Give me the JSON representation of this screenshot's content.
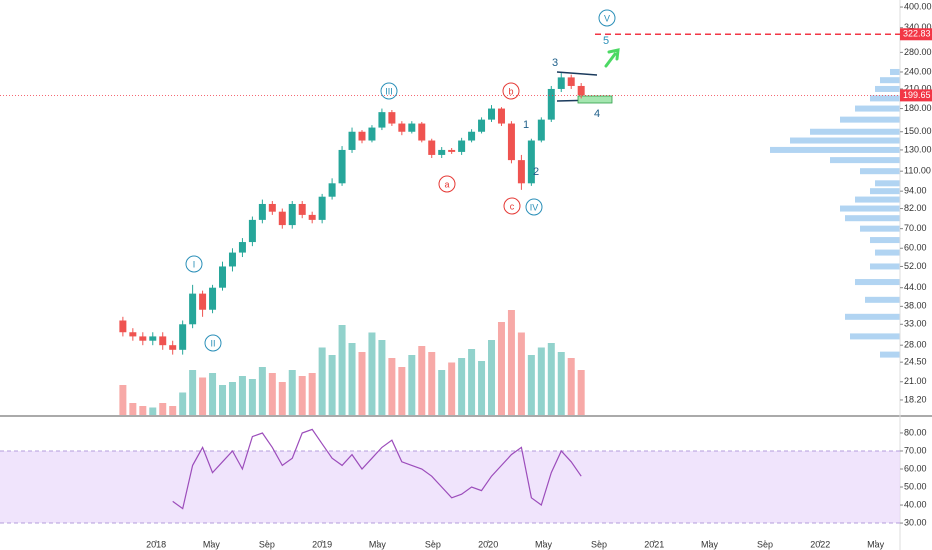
{
  "chart_data": [
    {
      "type": "candlestick",
      "x": [
        2017.8,
        2017.86,
        2017.92,
        2017.98,
        2018.04,
        2018.1,
        2018.16,
        2018.22,
        2018.28,
        2018.34,
        2018.4,
        2018.46,
        2018.52,
        2018.58,
        2018.64,
        2018.7,
        2018.76,
        2018.82,
        2018.88,
        2018.94,
        2019,
        2019.06,
        2019.12,
        2019.18,
        2019.24,
        2019.3,
        2019.36,
        2019.42,
        2019.48,
        2019.54,
        2019.6,
        2019.66,
        2019.72,
        2019.78,
        2019.84,
        2019.9,
        2019.96,
        2020.02,
        2020.08,
        2020.14,
        2020.2,
        2020.26,
        2020.32,
        2020.38,
        2020.44,
        2020.5,
        2020.56
      ],
      "open": [
        34,
        31,
        30,
        29,
        30,
        28,
        27,
        33,
        42,
        37,
        44,
        52,
        58,
        63,
        75,
        85,
        80,
        72,
        85,
        78,
        75,
        90,
        100,
        130,
        150,
        140,
        155,
        175,
        160,
        150,
        160,
        140,
        125,
        130,
        128,
        140,
        150,
        165,
        180,
        160,
        120,
        100,
        140,
        165,
        210,
        230,
        215
      ],
      "high": [
        35,
        32,
        31,
        31,
        31,
        29,
        34,
        45,
        43,
        45,
        54,
        60,
        65,
        77,
        88,
        87,
        82,
        87,
        87,
        80,
        92,
        104,
        134,
        155,
        152,
        158,
        180,
        178,
        163,
        163,
        162,
        142,
        133,
        132,
        143,
        153,
        168,
        185,
        182,
        163,
        125,
        142,
        168,
        215,
        238,
        235,
        220
      ],
      "low": [
        30,
        29,
        28,
        28,
        27,
        26,
        26,
        32,
        35,
        36,
        43,
        50,
        56,
        61,
        73,
        78,
        70,
        70,
        76,
        73,
        73,
        88,
        98,
        127,
        137,
        138,
        152,
        157,
        146,
        148,
        138,
        122,
        122,
        126,
        125,
        138,
        148,
        162,
        157,
        117,
        95,
        98,
        138,
        162,
        205,
        210,
        195
      ],
      "close": [
        31,
        30,
        29,
        30,
        28,
        27,
        33,
        42,
        37,
        44,
        52,
        58,
        63,
        75,
        85,
        80,
        72,
        85,
        78,
        75,
        90,
        100,
        130,
        150,
        140,
        155,
        175,
        160,
        150,
        160,
        140,
        125,
        130,
        128,
        140,
        150,
        165,
        180,
        160,
        120,
        100,
        140,
        165,
        210,
        230,
        215,
        200
      ],
      "volume": [
        20,
        8,
        6,
        5,
        8,
        6,
        15,
        30,
        25,
        28,
        20,
        22,
        26,
        24,
        32,
        28,
        22,
        30,
        26,
        28,
        45,
        40,
        60,
        48,
        42,
        55,
        50,
        38,
        32,
        40,
        46,
        42,
        30,
        35,
        38,
        44,
        36,
        50,
        62,
        70,
        55,
        40,
        45,
        48,
        42,
        38,
        30
      ],
      "up_color": "#26a69a",
      "down_color": "#ef5350",
      "log_scale": true,
      "xlim": [
        2017.06,
        2022.48
      ],
      "ylim": [
        16.17,
        422.7
      ],
      "yticks": [
        {
          "value": 400,
          "label": "400.00"
        },
        {
          "value": 340,
          "label": "340.00"
        },
        {
          "value": 280,
          "label": "280.00"
        },
        {
          "value": 240,
          "label": "240.00"
        },
        {
          "value": 210,
          "label": "210.00"
        },
        {
          "value": 180,
          "label": "180.00"
        },
        {
          "value": 150,
          "label": "150.00"
        },
        {
          "value": 130,
          "label": "130.00"
        },
        {
          "value": 110,
          "label": "110.00"
        },
        {
          "value": 94,
          "label": "94.00"
        },
        {
          "value": 82,
          "label": "82.00"
        },
        {
          "value": 70,
          "label": "70.00"
        },
        {
          "value": 60,
          "label": "60.00"
        },
        {
          "value": 52,
          "label": "52.00"
        },
        {
          "value": 44,
          "label": "44.00"
        },
        {
          "value": 38,
          "label": "38.00"
        },
        {
          "value": 33,
          "label": "33.00"
        },
        {
          "value": 28,
          "label": "28.00"
        },
        {
          "value": 24.5,
          "label": "24.50"
        },
        {
          "value": 21,
          "label": "21.00"
        },
        {
          "value": 18.2,
          "label": "18.20"
        }
      ],
      "levels": [
        {
          "value": 322.83,
          "label": "322.83"
        },
        {
          "value": 199.65,
          "label": "199.65"
        }
      ],
      "level_color": "#f23645",
      "volume_profile": {
        "prices": [
          240,
          225,
          210,
          195,
          180,
          165,
          150,
          140,
          130,
          120,
          110,
          100,
          94,
          88,
          82,
          76,
          70,
          64,
          58,
          52,
          46,
          40,
          35,
          30,
          26
        ],
        "values": [
          10,
          20,
          25,
          30,
          45,
          60,
          90,
          110,
          130,
          70,
          40,
          25,
          30,
          45,
          60,
          55,
          40,
          30,
          25,
          30,
          45,
          35,
          55,
          50,
          20
        ],
        "color": "#9ec9ef"
      },
      "annotations": [
        "V",
        "5",
        "3",
        "III",
        "b",
        "1",
        "4",
        "2",
        "a",
        "c",
        "IV",
        "I",
        "II"
      ]
    },
    {
      "type": "line",
      "x": [
        2017.8,
        2017.86,
        2017.92,
        2017.98,
        2018.04,
        2018.1,
        2018.16,
        2018.22,
        2018.28,
        2018.34,
        2018.4,
        2018.46,
        2018.52,
        2018.58,
        2018.64,
        2018.7,
        2018.76,
        2018.82,
        2018.88,
        2018.94,
        2019,
        2019.06,
        2019.12,
        2019.18,
        2019.24,
        2019.3,
        2019.36,
        2019.42,
        2019.48,
        2019.54,
        2019.6,
        2019.66,
        2019.72,
        2019.78,
        2019.84,
        2019.9,
        2019.96,
        2020.02,
        2020.08,
        2020.14,
        2020.2,
        2020.26,
        2020.32,
        2020.38,
        2020.44,
        2020.5,
        2020.56
      ],
      "values": [
        null,
        null,
        null,
        null,
        null,
        42,
        38,
        62,
        72,
        58,
        64,
        70,
        60,
        78,
        80,
        72,
        62,
        66,
        80,
        82,
        74,
        66,
        62,
        68,
        60,
        66,
        72,
        76,
        64,
        62,
        60,
        56,
        50,
        44,
        46,
        50,
        48,
        56,
        62,
        68,
        72,
        44,
        40,
        58,
        70,
        64,
        56
      ],
      "color": "#9c4dbb",
      "band": [
        30,
        70
      ],
      "band_color": "#ead9fb",
      "xlim": [
        2017.06,
        2022.48
      ],
      "ylim": [
        20.6,
        88.3
      ],
      "yticks": [
        {
          "value": 80,
          "label": "80.00"
        },
        {
          "value": 70,
          "label": "70.00"
        },
        {
          "value": 60,
          "label": "60.00"
        },
        {
          "value": 50,
          "label": "50.00"
        },
        {
          "value": 40,
          "label": "40.00"
        },
        {
          "value": 30,
          "label": "30.00"
        }
      ],
      "xticks": [
        {
          "value": 2018,
          "label": "2018"
        },
        {
          "value": 2018.333,
          "label": "May"
        },
        {
          "value": 2018.667,
          "label": "Sep"
        },
        {
          "value": 2019,
          "label": "2019"
        },
        {
          "value": 2019.333,
          "label": "May"
        },
        {
          "value": 2019.667,
          "label": "Sep"
        },
        {
          "value": 2020,
          "label": "2020"
        },
        {
          "value": 2020.333,
          "label": "May"
        },
        {
          "value": 2020.667,
          "label": "Sep"
        },
        {
          "value": 2021,
          "label": "2021"
        },
        {
          "value": 2021.333,
          "label": "May"
        },
        {
          "value": 2021.667,
          "label": "Sep"
        },
        {
          "value": 2022,
          "label": "2022"
        },
        {
          "value": 2022.333,
          "label": "May"
        }
      ]
    }
  ]
}
